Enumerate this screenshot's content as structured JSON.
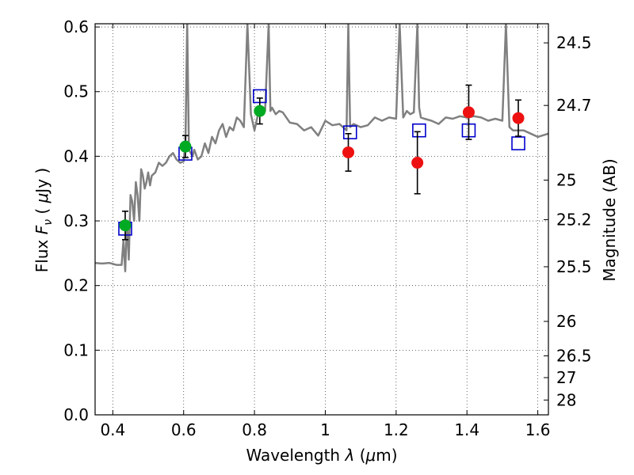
{
  "chart_data": {
    "type": "scatter",
    "xlabel": "Wavelength",
    "xlabel_symbol": "λ",
    "xlabel_unit_open": "(",
    "xlabel_unit_mu": "μ",
    "xlabel_unit_close": "m)",
    "ylabel": "Flux",
    "ylabel_symbol": "F",
    "ylabel_subscript": "ν",
    "ylabel_unit_open": "(",
    "ylabel_unit_mu": "μ",
    "ylabel_unit_close": "Jy )",
    "y2label": "Magnitude (AB)",
    "xlim": [
      0.35,
      1.63
    ],
    "ylim": [
      0.0,
      0.605
    ],
    "grid": true,
    "x_ticks": [
      {
        "value": 0.4,
        "label": "0.4"
      },
      {
        "value": 0.6,
        "label": "0.6"
      },
      {
        "value": 0.8,
        "label": "0.8"
      },
      {
        "value": 1.0,
        "label": "1"
      },
      {
        "value": 1.2,
        "label": "1.2"
      },
      {
        "value": 1.4,
        "label": "1.4"
      },
      {
        "value": 1.6,
        "label": "1.6"
      }
    ],
    "y_ticks": [
      {
        "value": 0.0,
        "label": "0.0"
      },
      {
        "value": 0.1,
        "label": "0.1"
      },
      {
        "value": 0.2,
        "label": "0.2"
      },
      {
        "value": 0.3,
        "label": "0.3"
      },
      {
        "value": 0.4,
        "label": "0.4"
      },
      {
        "value": 0.5,
        "label": "0.5"
      },
      {
        "value": 0.6,
        "label": "0.6"
      }
    ],
    "y2_ticks": [
      {
        "value": 24.5,
        "label": "24.5"
      },
      {
        "value": 24.7,
        "label": "24.7"
      },
      {
        "value": 25.0,
        "label": "25"
      },
      {
        "value": 25.2,
        "label": "25.2"
      },
      {
        "value": 25.5,
        "label": "25.5"
      },
      {
        "value": 26.0,
        "label": "26"
      },
      {
        "value": 26.5,
        "label": "26.5"
      },
      {
        "value": 27.0,
        "label": "27"
      },
      {
        "value": 28.0,
        "label": "28"
      }
    ],
    "model_spectrum": {
      "color": "#808080",
      "x": [
        0.35,
        0.37,
        0.39,
        0.41,
        0.425,
        0.43,
        0.435,
        0.44,
        0.445,
        0.45,
        0.455,
        0.46,
        0.465,
        0.47,
        0.475,
        0.48,
        0.485,
        0.49,
        0.495,
        0.5,
        0.505,
        0.51,
        0.52,
        0.53,
        0.54,
        0.55,
        0.56,
        0.57,
        0.58,
        0.59,
        0.6,
        0.605,
        0.61,
        0.615,
        0.62,
        0.625,
        0.63,
        0.64,
        0.65,
        0.66,
        0.67,
        0.68,
        0.69,
        0.7,
        0.71,
        0.72,
        0.73,
        0.74,
        0.75,
        0.76,
        0.77,
        0.78,
        0.79,
        0.8,
        0.81,
        0.82,
        0.83,
        0.84,
        0.845,
        0.85,
        0.86,
        0.87,
        0.88,
        0.9,
        0.92,
        0.94,
        0.96,
        0.98,
        1.0,
        1.02,
        1.04,
        1.06,
        1.065,
        1.07,
        1.08,
        1.1,
        1.12,
        1.14,
        1.16,
        1.18,
        1.2,
        1.21,
        1.22,
        1.23,
        1.24,
        1.25,
        1.26,
        1.265,
        1.27,
        1.28,
        1.3,
        1.32,
        1.34,
        1.36,
        1.38,
        1.4,
        1.42,
        1.44,
        1.46,
        1.48,
        1.5,
        1.51,
        1.52,
        1.53,
        1.54,
        1.56,
        1.58,
        1.6,
        1.63
      ],
      "y": [
        0.235,
        0.234,
        0.235,
        0.232,
        0.232,
        0.27,
        0.222,
        0.3,
        0.24,
        0.34,
        0.33,
        0.3,
        0.36,
        0.34,
        0.3,
        0.38,
        0.37,
        0.35,
        0.36,
        0.375,
        0.355,
        0.37,
        0.375,
        0.39,
        0.385,
        0.39,
        0.4,
        0.405,
        0.395,
        0.39,
        0.392,
        0.42,
        0.605,
        0.41,
        0.405,
        0.4,
        0.41,
        0.395,
        0.4,
        0.42,
        0.405,
        0.43,
        0.42,
        0.44,
        0.45,
        0.43,
        0.445,
        0.44,
        0.46,
        0.455,
        0.445,
        0.605,
        0.465,
        0.44,
        0.465,
        0.475,
        0.47,
        0.605,
        0.47,
        0.475,
        0.465,
        0.47,
        0.468,
        0.452,
        0.45,
        0.44,
        0.445,
        0.432,
        0.455,
        0.448,
        0.45,
        0.44,
        0.605,
        0.445,
        0.45,
        0.445,
        0.448,
        0.46,
        0.455,
        0.46,
        0.458,
        0.605,
        0.46,
        0.47,
        0.465,
        0.468,
        0.605,
        0.475,
        0.46,
        0.458,
        0.455,
        0.45,
        0.46,
        0.458,
        0.462,
        0.46,
        0.462,
        0.46,
        0.455,
        0.458,
        0.455,
        0.605,
        0.445,
        0.44,
        0.44,
        0.44,
        0.435,
        0.43,
        0.435
      ]
    },
    "series": [
      {
        "marker": "square-open",
        "color": "#0000cc",
        "x": [
          0.435,
          0.605,
          0.815,
          1.07,
          1.265,
          1.405,
          1.545
        ],
        "y": [
          0.288,
          0.404,
          0.493,
          0.437,
          0.44,
          0.44,
          0.42
        ]
      },
      {
        "marker": "circle",
        "color": "#00aa22",
        "x": [
          0.435,
          0.605,
          0.815
        ],
        "y": [
          0.293,
          0.415,
          0.47
        ],
        "yerr": [
          0.022,
          0.017,
          0.02
        ]
      },
      {
        "marker": "circle",
        "color": "#ee1111",
        "x": [
          1.065,
          1.26,
          1.405,
          1.545
        ],
        "y": [
          0.406,
          0.39,
          0.468,
          0.459
        ],
        "yerr": [
          0.029,
          0.048,
          0.042,
          0.028
        ]
      }
    ]
  }
}
